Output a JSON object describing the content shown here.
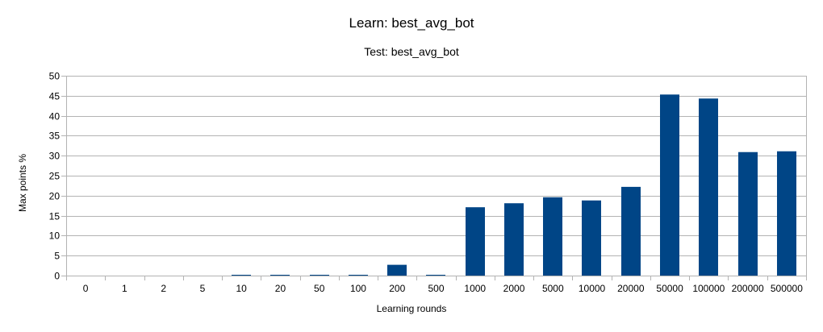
{
  "chart_data": {
    "type": "bar",
    "title": "Learn: best_avg_bot",
    "subtitle": "Test: best_avg_bot",
    "xlabel": "Learning rounds",
    "ylabel": "Max points %",
    "categories": [
      "0",
      "1",
      "2",
      "5",
      "10",
      "20",
      "50",
      "100",
      "200",
      "500",
      "1000",
      "2000",
      "5000",
      "10000",
      "20000",
      "50000",
      "100000",
      "200000",
      "500000"
    ],
    "values": [
      0,
      0,
      0,
      0,
      0.2,
      0.2,
      0.1,
      0.05,
      2.7,
      0.05,
      17.1,
      18.1,
      19.6,
      18.8,
      22.2,
      45.3,
      44.3,
      30.9,
      31.1
    ],
    "ylim": [
      0,
      50
    ],
    "yticks": [
      0,
      5,
      10,
      15,
      20,
      25,
      30,
      35,
      40,
      45,
      50
    ],
    "grid": true,
    "legend": "none",
    "bar_color": "#004586"
  }
}
